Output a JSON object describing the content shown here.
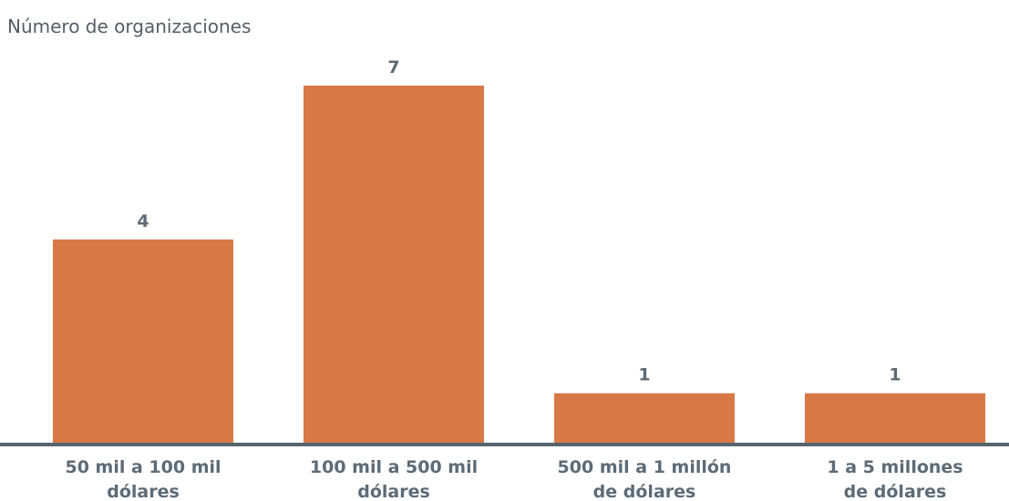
{
  "chart_data": {
    "type": "bar",
    "ylabel": "Número de organizaciones",
    "categories": [
      [
        "50 mil a 100 mil",
        "dólares"
      ],
      [
        "100 mil a 500 mil",
        "dólares"
      ],
      [
        "500 mil a 1 millón",
        "de dólares"
      ],
      [
        "1 a 5 millones",
        "de dólares"
      ]
    ],
    "values": [
      4,
      7,
      1,
      1
    ],
    "value_labels": [
      "4",
      "7",
      "1",
      "1"
    ],
    "ylim": [
      0,
      7
    ],
    "grid": false,
    "colors": {
      "bar": "#d77847",
      "axis": "#56646e",
      "label": "#5d6b76"
    }
  }
}
